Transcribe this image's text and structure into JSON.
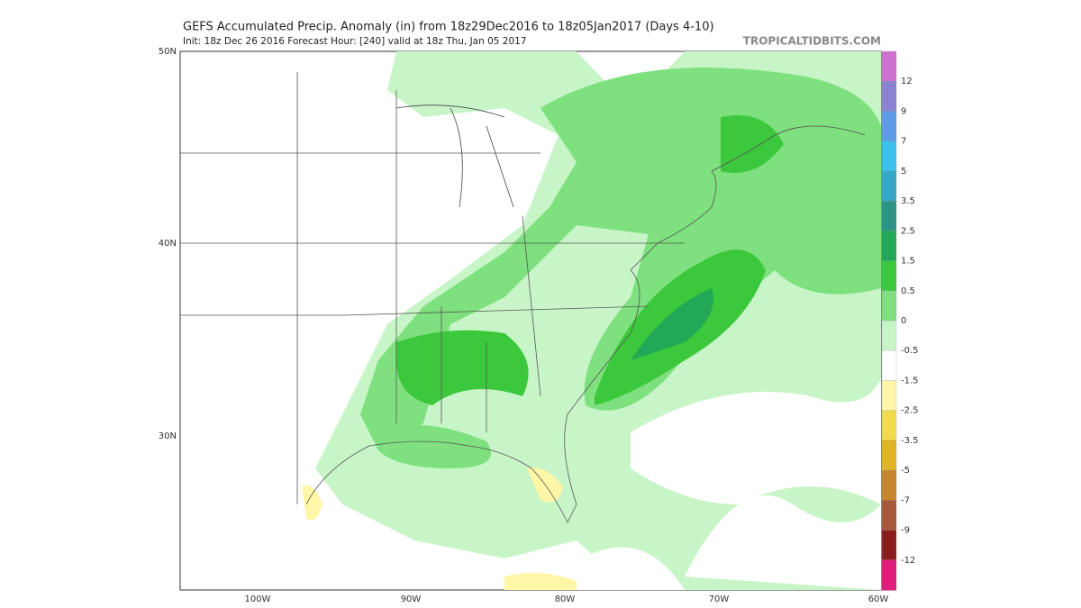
{
  "header": {
    "title": "GEFS Accumulated Precip. Anomaly (in) from 18z29Dec2016 to 18z05Jan2017 (Days 4-10)",
    "subtitle": "Init: 18z Dec 26 2016   Forecast Hour: [240]   valid at 18z Thu, Jan 05 2017",
    "brand": "TROPICALTIDBITS.COM"
  },
  "map": {
    "lat_labels": [
      "50N",
      "40N",
      "30N"
    ],
    "lon_labels": [
      "100W",
      "90W",
      "80W",
      "70W",
      "60W"
    ]
  },
  "colorbar": {
    "labels": [
      "12",
      "9",
      "7",
      "5",
      "3.5",
      "2.5",
      "1.5",
      "0.5",
      "0",
      "-0.5",
      "-1.5",
      "-2.5",
      "-3.5",
      "-5",
      "-7",
      "-9",
      "-12"
    ],
    "colors": [
      "#d070d0",
      "#8c82d4",
      "#5c9ce6",
      "#3cc0ee",
      "#36a8c6",
      "#2e9486",
      "#22a856",
      "#3cc83c",
      "#7ee07e",
      "#c8f5c8",
      "#ffffff",
      "#fff6a8",
      "#f2dc4c",
      "#e0b424",
      "#c8862c",
      "#a8583a",
      "#8e1c1c",
      "#e01c7c"
    ]
  }
}
